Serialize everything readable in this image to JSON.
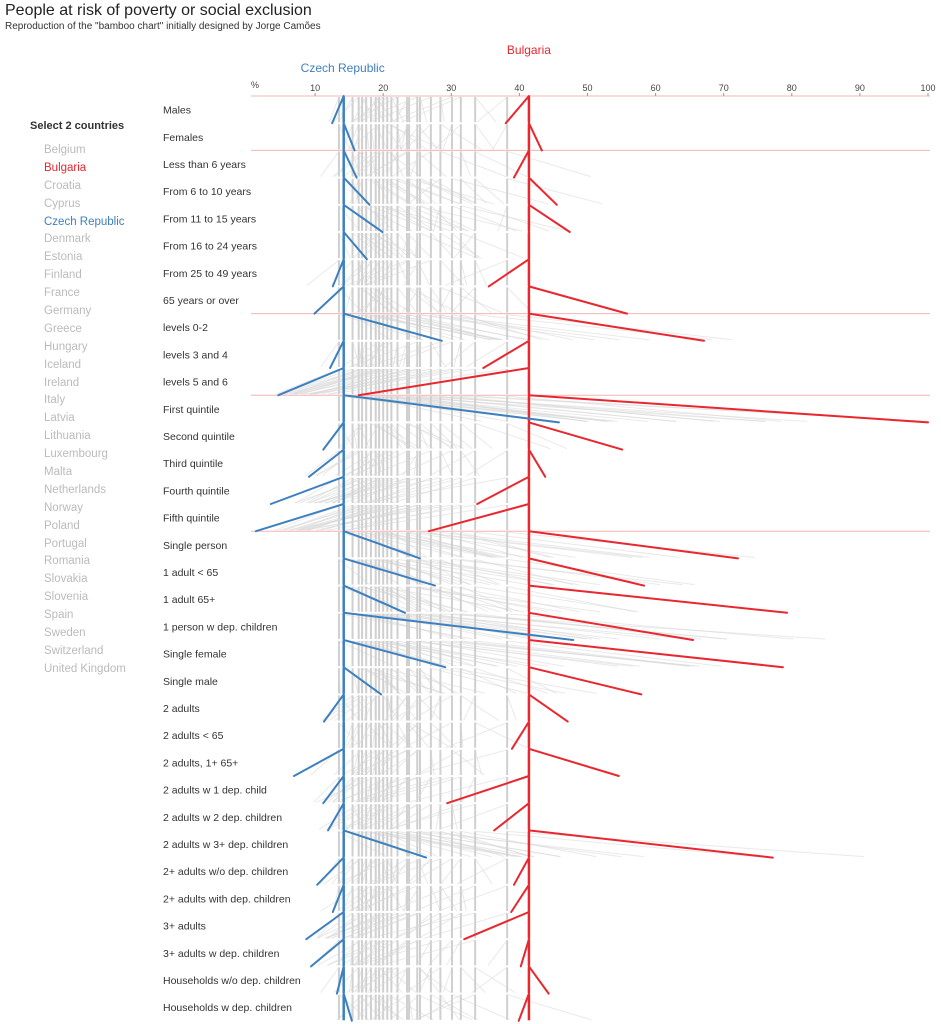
{
  "header": {
    "title": "People at risk of poverty or social exclusion",
    "subtitle": "Reproduction of the \"bamboo chart\" initially designed by Jorge Camões"
  },
  "sidebar": {
    "heading": "Select 2 countries",
    "countries": [
      "Belgium",
      "Bulgaria",
      "Croatia",
      "Cyprus",
      "Czech Republic",
      "Denmark",
      "Estonia",
      "Finland",
      "France",
      "Germany",
      "Greece",
      "Hungary",
      "Iceland",
      "Ireland",
      "Italy",
      "Latvia",
      "Lithuania",
      "Luxembourg",
      "Malta",
      "Netherlands",
      "Norway",
      "Poland",
      "Portugal",
      "Romania",
      "Slovakia",
      "Slovenia",
      "Spain",
      "Sweden",
      "Switzerland",
      "United Kingdom"
    ],
    "selected": [
      "Bulgaria",
      "Czech Republic"
    ]
  },
  "colors": {
    "country_a": "#e8272e",
    "country_b": "#3d80bf",
    "other": "#c8c8c8",
    "divider": "#f7b4b4",
    "unselected_text": "#bbbbbb"
  },
  "chart_data": {
    "type": "line",
    "title": "People at risk of poverty or social exclusion",
    "xlabel": "%",
    "xlim": [
      0,
      100
    ],
    "xticks": [
      10,
      20,
      30,
      40,
      50,
      60,
      70,
      80,
      90,
      100
    ],
    "categories": [
      "Males",
      "Females",
      "Less than 6 years",
      "From 6 to 10 years",
      "From 11 to 15 years",
      "From 16 to 24 years",
      "From 25 to 49 years",
      "65 years or over",
      "levels 0-2",
      "levels 3 and 4",
      "levels 5 and 6",
      "First quintile",
      "Second quintile",
      "Third quintile",
      "Fourth quintile",
      "Fifth quintile",
      "Single person",
      "1 adult < 65",
      "1 adult 65+",
      "1 person w dep. children",
      "Single female",
      "Single male",
      "2 adults",
      "2 adults < 65",
      "2 adults, 1+ 65+",
      "2 adults w 1 dep. child",
      "2 adults w 2 dep. children",
      "2 adults w 3+ dep. children",
      "2+ adults w/o dep. children",
      "2+ adults with dep. children",
      "3+ adults",
      "3+ adults w dep. children",
      "Households w/o dep. children",
      "Households w dep. children"
    ],
    "group_breaks_after": [
      1,
      7,
      10,
      15
    ],
    "series": [
      {
        "name": "Bulgaria",
        "color": "#e8272e",
        "total": 41.4,
        "values": [
          38.0,
          43.3,
          39.2,
          45.5,
          47.4,
          41.4,
          35.5,
          55.8,
          67.1,
          34.7,
          16.4,
          100,
          55.1,
          43.8,
          33.8,
          26.7,
          72.1,
          58.3,
          79.3,
          65.5,
          78.7,
          57.9,
          47.1,
          38.9,
          54.6,
          29.4,
          36.3,
          77.2,
          39.2,
          38.8,
          31.9,
          40.2,
          44.3,
          39.9
        ],
        "label_position": "above-center"
      },
      {
        "name": "Czech Republic",
        "color": "#3d80bf",
        "total": 14.2,
        "values": [
          12.5,
          15.8,
          16.1,
          18.0,
          19.9,
          17.6,
          12.6,
          9.9,
          28.6,
          12.2,
          4.6,
          45.8,
          11.2,
          9.1,
          3.5,
          1.3,
          25.4,
          27.6,
          23.2,
          47.9,
          29.1,
          19.7,
          11.3,
          14.2,
          6.9,
          11.2,
          11.9,
          26.3,
          10.3,
          12.6,
          8.7,
          9.4,
          13.2,
          15.4
        ],
        "label_position": "above-left"
      }
    ],
    "other_countries_totals": [
      13.5,
      15.5,
      16.4,
      16.9,
      17.5,
      18.2,
      18.9,
      19.4,
      20.0,
      20.6,
      21.2,
      22.1,
      23.5,
      23.8,
      25.0,
      25.4,
      27.0,
      28.4,
      30.1,
      31.4,
      33.5,
      38.2
    ]
  }
}
